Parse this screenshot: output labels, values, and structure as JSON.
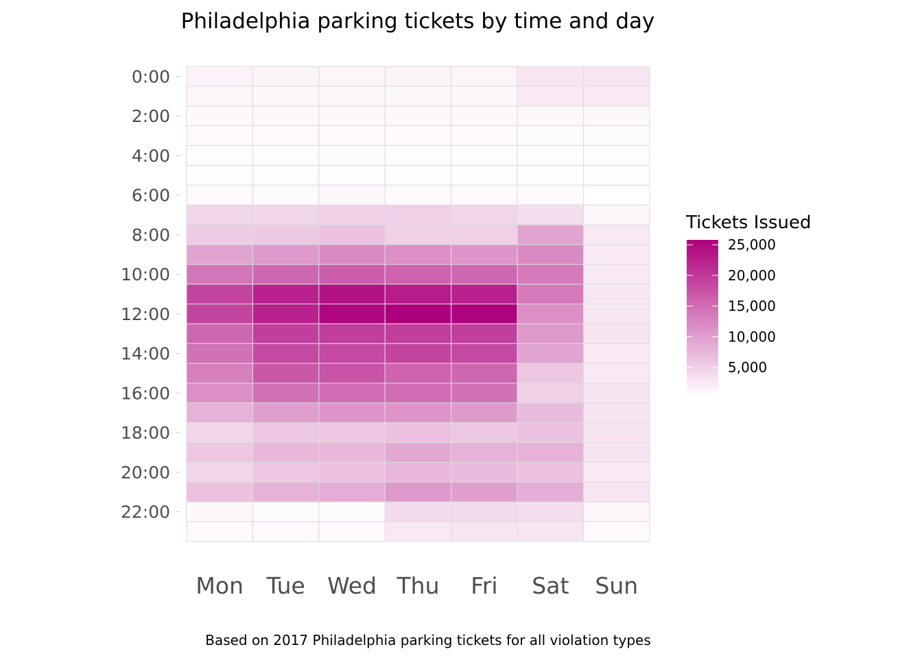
{
  "chart_data": {
    "type": "heatmap",
    "title": "Philadelphia parking tickets by time and day",
    "caption": "Based on 2017 Philadelphia parking tickets for all violation types",
    "xlabel": "",
    "ylabel": "",
    "x_categories": [
      "Mon",
      "Tue",
      "Wed",
      "Thu",
      "Fri",
      "Sat",
      "Sun"
    ],
    "y_categories": [
      "0:00",
      "1:00",
      "2:00",
      "3:00",
      "4:00",
      "5:00",
      "6:00",
      "7:00",
      "8:00",
      "9:00",
      "10:00",
      "11:00",
      "12:00",
      "13:00",
      "14:00",
      "15:00",
      "16:00",
      "17:00",
      "18:00",
      "19:00",
      "20:00",
      "21:00",
      "22:00",
      "23:00"
    ],
    "y_tick_labels": [
      "0:00",
      "2:00",
      "4:00",
      "6:00",
      "8:00",
      "10:00",
      "12:00",
      "14:00",
      "16:00",
      "18:00",
      "20:00",
      "22:00"
    ],
    "values": [
      [
        1500,
        1400,
        1300,
        1400,
        1300,
        2800,
        2800
      ],
      [
        1200,
        1100,
        1100,
        1100,
        1100,
        2500,
        2500
      ],
      [
        1000,
        1000,
        1000,
        1000,
        1000,
        1000,
        1000
      ],
      [
        900,
        900,
        900,
        900,
        900,
        800,
        800
      ],
      [
        600,
        600,
        700,
        500,
        500,
        500,
        500
      ],
      [
        500,
        500,
        500,
        500,
        500,
        500,
        500
      ],
      [
        900,
        800,
        1100,
        900,
        900,
        800,
        300
      ],
      [
        4500,
        4500,
        5000,
        5000,
        4500,
        3500,
        1200
      ],
      [
        5500,
        5800,
        6500,
        5000,
        5000,
        9500,
        2500
      ],
      [
        9500,
        10500,
        12000,
        11500,
        11000,
        12000,
        2500
      ],
      [
        14000,
        15500,
        16500,
        16000,
        15500,
        13500,
        2500
      ],
      [
        19000,
        22500,
        24000,
        23000,
        22500,
        13500,
        2700
      ],
      [
        19000,
        22500,
        25000,
        25800,
        25500,
        11500,
        2700
      ],
      [
        15500,
        19500,
        19500,
        19500,
        19500,
        10500,
        3000
      ],
      [
        14500,
        18500,
        18500,
        19000,
        18500,
        9500,
        2500
      ],
      [
        13000,
        17000,
        17500,
        16000,
        15500,
        6000,
        2500
      ],
      [
        11500,
        14500,
        15000,
        15000,
        14500,
        5000,
        3000
      ],
      [
        8000,
        10000,
        11000,
        11000,
        10500,
        7000,
        3000
      ],
      [
        4500,
        6000,
        6000,
        6500,
        6000,
        6500,
        3000
      ],
      [
        6000,
        7500,
        7500,
        9000,
        8000,
        8000,
        3000
      ],
      [
        4500,
        6000,
        6500,
        7500,
        7000,
        6500,
        2500
      ],
      [
        6500,
        8000,
        8500,
        10500,
        10000,
        8500,
        2800
      ],
      [
        1000,
        800,
        800,
        4000,
        4000,
        3500,
        1200
      ],
      [
        900,
        900,
        900,
        2500,
        2800,
        2800,
        900
      ]
    ],
    "legend": {
      "title": "Tickets Issued",
      "ticks": [
        25000,
        20000,
        15000,
        10000,
        5000
      ],
      "tick_labels": [
        "25,000",
        "20,000",
        "15,000",
        "10,000",
        "5,000"
      ],
      "range": [
        300,
        25800
      ],
      "placement": "right"
    },
    "colors": {
      "low": "#FFFFFF",
      "high": "#AD007C"
    },
    "grid": true
  }
}
